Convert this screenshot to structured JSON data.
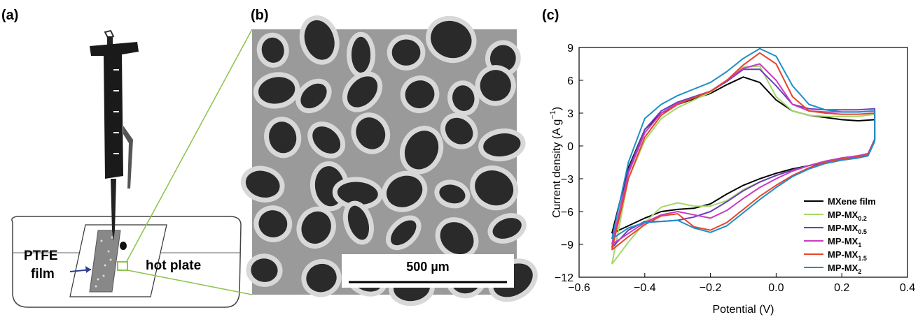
{
  "panels": {
    "a": {
      "label": "(a)",
      "ptfe_label": [
        "PTFE",
        "film"
      ],
      "hot_plate_label": "hot plate"
    },
    "b": {
      "label": "(b)",
      "scale_bar": "500 µm"
    },
    "c": {
      "label": "(c)"
    }
  },
  "chart_data": {
    "type": "line",
    "xlabel": "Potential (V)",
    "ylabel": {
      "text": "Current density (A g",
      "sup": "−1",
      "tail": ")"
    },
    "xlim": [
      -0.6,
      0.4
    ],
    "ylim": [
      -12,
      9
    ],
    "xticks": [
      {
        "value": -0.6,
        "label": "−0.6"
      },
      {
        "value": -0.4,
        "label": "−0.4"
      },
      {
        "value": -0.2,
        "label": "−0.2"
      },
      {
        "value": 0,
        "label": "0.0"
      },
      0.2,
      0.4
    ],
    "yticks": [
      {
        "value": -12,
        "label": "−12"
      },
      {
        "value": -9,
        "label": "−9"
      },
      {
        "value": -6,
        "label": "−6"
      },
      {
        "value": -3,
        "label": "−3"
      },
      0,
      3,
      6,
      9
    ],
    "legend": "lower right",
    "x": [
      -0.5,
      -0.45,
      -0.4,
      -0.35,
      -0.3,
      -0.25,
      -0.2,
      -0.15,
      -0.1,
      -0.05,
      0,
      0.05,
      0.1,
      0.15,
      0.2,
      0.25,
      0.3,
      0.3,
      0.28,
      0.25,
      0.2,
      0.15,
      0.1,
      0.05,
      0,
      -0.05,
      -0.1,
      -0.15,
      -0.2,
      -0.25,
      -0.3,
      -0.35,
      -0.4,
      -0.45,
      -0.5
    ],
    "series": [
      {
        "name": "MXene film",
        "color": "#000000",
        "values": [
          -8,
          -2,
          1.5,
          3,
          3.8,
          4.3,
          4.8,
          5.6,
          6.3,
          5.8,
          4.2,
          3.2,
          2.8,
          2.6,
          2.4,
          2.3,
          2.4,
          0.5,
          -0.8,
          -1.0,
          -1.2,
          -1.5,
          -1.8,
          -2.1,
          -2.5,
          -3.0,
          -3.6,
          -4.4,
          -5.3,
          -5.7,
          -5.8,
          -6.0,
          -6.6,
          -7.3,
          -8
        ]
      },
      {
        "name": "MP-MX",
        "name_sub": "0.2",
        "color": "#a6d86a",
        "values": [
          -10.8,
          -3,
          0.5,
          2.5,
          3.5,
          4.2,
          4.9,
          6,
          7.2,
          7.3,
          4.5,
          3.2,
          2.8,
          2.7,
          2.7,
          2.7,
          2.9,
          0.6,
          -0.7,
          -0.9,
          -1.1,
          -1.4,
          -1.8,
          -2.2,
          -2.7,
          -3.3,
          -4.0,
          -5.0,
          -5.5,
          -5.5,
          -5.2,
          -5.6,
          -7.0,
          -8.8,
          -10.8
        ]
      },
      {
        "name": "MP-MX",
        "name_sub": "0.5",
        "color": "#6a3fb8",
        "values": [
          -9.3,
          -2.2,
          1.5,
          3.2,
          4.0,
          4.5,
          5.0,
          5.9,
          7.0,
          7.0,
          5.5,
          3.8,
          3.4,
          3.3,
          3.3,
          3.3,
          3.4,
          0.6,
          -0.7,
          -0.9,
          -1.1,
          -1.4,
          -1.8,
          -2.2,
          -2.7,
          -3.3,
          -4.1,
          -5.1,
          -6.0,
          -6.5,
          -6.8,
          -6.9,
          -6.9,
          -7.7,
          -9.3
        ]
      },
      {
        "name": "MP-MX",
        "name_sub": "1",
        "color": "#c83cc0",
        "values": [
          -9.0,
          -2.5,
          1.2,
          3.0,
          3.9,
          4.4,
          5.0,
          6.0,
          7.1,
          7.5,
          6.0,
          3.8,
          3.2,
          3.1,
          3.1,
          3.1,
          3.2,
          0.6,
          -0.7,
          -0.9,
          -1.1,
          -1.4,
          -1.8,
          -2.3,
          -3.0,
          -3.8,
          -4.8,
          -5.9,
          -6.6,
          -6.3,
          -6.0,
          -6.3,
          -7.0,
          -8.0,
          -9.0
        ]
      },
      {
        "name": "MP-MX",
        "name_sub": "1.5",
        "color": "#e8452a",
        "values": [
          -9.5,
          -3,
          0.8,
          2.8,
          3.8,
          4.4,
          5.0,
          6.0,
          7.4,
          8.5,
          7.5,
          4.5,
          3.2,
          3.0,
          2.9,
          2.9,
          3.0,
          0.5,
          -0.8,
          -1.0,
          -1.2,
          -1.5,
          -2.0,
          -2.7,
          -3.6,
          -4.6,
          -5.8,
          -7.0,
          -7.7,
          -7.4,
          -6.2,
          -6.4,
          -7.2,
          -8.3,
          -9.5
        ]
      },
      {
        "name": "MP-MX",
        "name_sub": "2",
        "color": "#1e8ec8",
        "values": [
          -8.5,
          -1.5,
          2.5,
          3.8,
          4.6,
          5.2,
          5.8,
          6.8,
          8.0,
          8.9,
          8.2,
          5.5,
          3.8,
          3.3,
          3.1,
          3.1,
          3.2,
          0.4,
          -0.9,
          -1.1,
          -1.3,
          -1.6,
          -2.1,
          -2.8,
          -3.8,
          -4.9,
          -6.1,
          -7.3,
          -7.9,
          -7.5,
          -6.8,
          -6.9,
          -7.0,
          -7.5,
          -8.5
        ]
      }
    ]
  }
}
